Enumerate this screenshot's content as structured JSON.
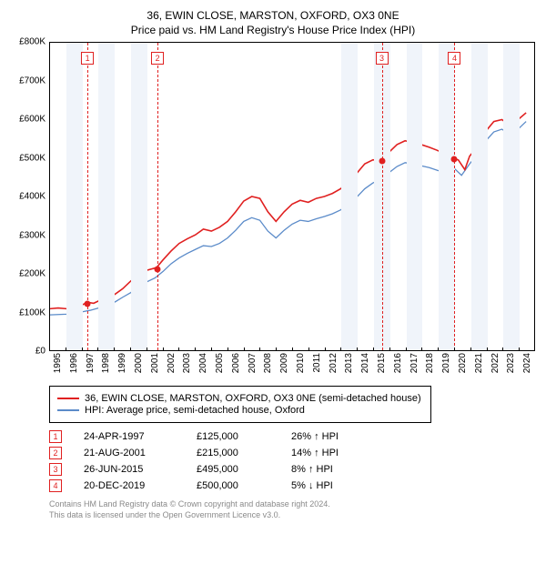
{
  "title": {
    "line1": "36, EWIN CLOSE, MARSTON, OXFORD, OX3 0NE",
    "line2": "Price paid vs. HM Land Registry's House Price Index (HPI)",
    "fontsize": 12
  },
  "chart": {
    "type": "line",
    "background_color": "#ffffff",
    "band_color": "#f0f4fa",
    "axis_color": "#000000",
    "ylim": [
      0,
      800000
    ],
    "ytick_step": 100000,
    "ytick_labels": [
      "£0",
      "£100K",
      "£200K",
      "£300K",
      "£400K",
      "£500K",
      "£600K",
      "£700K",
      "£800K"
    ],
    "xlim": [
      1995,
      2025
    ],
    "xticks": [
      1995,
      1996,
      1997,
      1998,
      1999,
      2000,
      2001,
      2002,
      2003,
      2004,
      2005,
      2006,
      2007,
      2008,
      2009,
      2010,
      2011,
      2012,
      2013,
      2014,
      2015,
      2016,
      2017,
      2018,
      2019,
      2020,
      2021,
      2022,
      2023,
      2024
    ],
    "label_fontsize": 10,
    "series": [
      {
        "name": "36, EWIN CLOSE, MARSTON, OXFORD, OX3 0NE (semi-detached house)",
        "color": "#e02020",
        "width": 1.6,
        "data": [
          [
            1995,
            108000
          ],
          [
            1995.5,
            110000
          ],
          [
            1996,
            108000
          ],
          [
            1996.5,
            112000
          ],
          [
            1997,
            118000
          ],
          [
            1997.3,
            125000
          ],
          [
            1997.7,
            122000
          ],
          [
            1998,
            128000
          ],
          [
            1998.5,
            132000
          ],
          [
            1999,
            145000
          ],
          [
            1999.5,
            160000
          ],
          [
            2000,
            180000
          ],
          [
            2000.5,
            195000
          ],
          [
            2001,
            208000
          ],
          [
            2001.6,
            215000
          ],
          [
            2002,
            235000
          ],
          [
            2002.5,
            258000
          ],
          [
            2003,
            278000
          ],
          [
            2003.5,
            290000
          ],
          [
            2004,
            300000
          ],
          [
            2004.5,
            315000
          ],
          [
            2005,
            310000
          ],
          [
            2005.5,
            320000
          ],
          [
            2006,
            335000
          ],
          [
            2006.5,
            360000
          ],
          [
            2007,
            388000
          ],
          [
            2007.5,
            400000
          ],
          [
            2008,
            395000
          ],
          [
            2008.5,
            360000
          ],
          [
            2009,
            335000
          ],
          [
            2009.5,
            360000
          ],
          [
            2010,
            380000
          ],
          [
            2010.5,
            390000
          ],
          [
            2011,
            385000
          ],
          [
            2011.5,
            395000
          ],
          [
            2012,
            400000
          ],
          [
            2012.5,
            408000
          ],
          [
            2013,
            420000
          ],
          [
            2013.5,
            435000
          ],
          [
            2014,
            460000
          ],
          [
            2014.5,
            485000
          ],
          [
            2015,
            495000
          ],
          [
            2015.5,
            495000
          ],
          [
            2016,
            515000
          ],
          [
            2016.5,
            535000
          ],
          [
            2017,
            545000
          ],
          [
            2017.5,
            540000
          ],
          [
            2018,
            535000
          ],
          [
            2018.5,
            528000
          ],
          [
            2019,
            520000
          ],
          [
            2019.5,
            510000
          ],
          [
            2019.97,
            500000
          ],
          [
            2020.3,
            495000
          ],
          [
            2020.7,
            470000
          ],
          [
            2021,
            505000
          ],
          [
            2021.5,
            530000
          ],
          [
            2022,
            570000
          ],
          [
            2022.5,
            595000
          ],
          [
            2023,
            600000
          ],
          [
            2023.5,
            585000
          ],
          [
            2024,
            600000
          ],
          [
            2024.5,
            618000
          ]
        ]
      },
      {
        "name": "HPI: Average price, semi-detached house, Oxford",
        "color": "#5b8bc9",
        "width": 1.3,
        "data": [
          [
            1995,
            92000
          ],
          [
            1995.5,
            93000
          ],
          [
            1996,
            94000
          ],
          [
            1996.5,
            96000
          ],
          [
            1997,
            100000
          ],
          [
            1997.5,
            104000
          ],
          [
            1998,
            110000
          ],
          [
            1998.5,
            115000
          ],
          [
            1999,
            125000
          ],
          [
            1999.5,
            138000
          ],
          [
            2000,
            150000
          ],
          [
            2000.5,
            165000
          ],
          [
            2001,
            178000
          ],
          [
            2001.5,
            188000
          ],
          [
            2002,
            205000
          ],
          [
            2002.5,
            225000
          ],
          [
            2003,
            240000
          ],
          [
            2003.5,
            252000
          ],
          [
            2004,
            262000
          ],
          [
            2004.5,
            272000
          ],
          [
            2005,
            270000
          ],
          [
            2005.5,
            278000
          ],
          [
            2006,
            292000
          ],
          [
            2006.5,
            312000
          ],
          [
            2007,
            335000
          ],
          [
            2007.5,
            345000
          ],
          [
            2008,
            338000
          ],
          [
            2008.5,
            310000
          ],
          [
            2009,
            292000
          ],
          [
            2009.5,
            312000
          ],
          [
            2010,
            328000
          ],
          [
            2010.5,
            338000
          ],
          [
            2011,
            335000
          ],
          [
            2011.5,
            342000
          ],
          [
            2012,
            348000
          ],
          [
            2012.5,
            355000
          ],
          [
            2013,
            365000
          ],
          [
            2013.5,
            378000
          ],
          [
            2014,
            398000
          ],
          [
            2014.5,
            420000
          ],
          [
            2015,
            435000
          ],
          [
            2015.5,
            445000
          ],
          [
            2016,
            462000
          ],
          [
            2016.5,
            478000
          ],
          [
            2017,
            488000
          ],
          [
            2017.5,
            485000
          ],
          [
            2018,
            480000
          ],
          [
            2018.5,
            475000
          ],
          [
            2019,
            468000
          ],
          [
            2019.5,
            462000
          ],
          [
            2020,
            475000
          ],
          [
            2020.5,
            455000
          ],
          [
            2021,
            485000
          ],
          [
            2021.5,
            510000
          ],
          [
            2022,
            545000
          ],
          [
            2022.5,
            568000
          ],
          [
            2023,
            575000
          ],
          [
            2023.5,
            562000
          ],
          [
            2024,
            575000
          ],
          [
            2024.5,
            595000
          ]
        ]
      }
    ],
    "sale_markers": [
      {
        "idx": "1",
        "year": 1997.31,
        "price": 125000
      },
      {
        "idx": "2",
        "year": 2001.64,
        "price": 215000
      },
      {
        "idx": "3",
        "year": 2015.48,
        "price": 495000
      },
      {
        "idx": "4",
        "year": 2019.97,
        "price": 500000
      }
    ],
    "marker_color": "#e02020",
    "shade_after_year": 2013
  },
  "legend": {
    "rows": [
      {
        "label": "36, EWIN CLOSE, MARSTON, OXFORD, OX3 0NE (semi-detached house)",
        "color": "#e02020"
      },
      {
        "label": "HPI: Average price, semi-detached house, Oxford",
        "color": "#5b8bc9"
      }
    ]
  },
  "sales": [
    {
      "idx": "1",
      "date": "24-APR-1997",
      "price": "£125,000",
      "pct": "26% ↑ HPI"
    },
    {
      "idx": "2",
      "date": "21-AUG-2001",
      "price": "£215,000",
      "pct": "14% ↑ HPI"
    },
    {
      "idx": "3",
      "date": "26-JUN-2015",
      "price": "£495,000",
      "pct": "8% ↑ HPI"
    },
    {
      "idx": "4",
      "date": "20-DEC-2019",
      "price": "£500,000",
      "pct": "5% ↓ HPI"
    }
  ],
  "footer": {
    "line1": "Contains HM Land Registry data © Crown copyright and database right 2024.",
    "line2": "This data is licensed under the Open Government Licence v3.0."
  }
}
